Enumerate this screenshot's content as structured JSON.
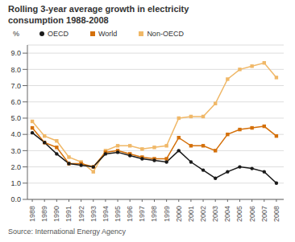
{
  "chart_data": {
    "type": "line",
    "title": "Rolling 3-year average growth in electricity\nconsumption 1988-2008",
    "ylabel": "%",
    "annotations": [
      "Source: International Energy Agency"
    ],
    "x": [
      1988,
      1989,
      1990,
      1991,
      1992,
      1993,
      1994,
      1995,
      1996,
      1997,
      1998,
      1999,
      2000,
      2001,
      2002,
      2003,
      2004,
      2005,
      2006,
      2007,
      2008
    ],
    "series": [
      {
        "name": "OECD",
        "color": "#1a1a1a",
        "marker": "circle",
        "values": [
          4.1,
          3.5,
          2.8,
          2.2,
          2.1,
          2.0,
          2.8,
          2.9,
          2.7,
          2.5,
          2.4,
          2.3,
          3.0,
          2.3,
          1.8,
          1.3,
          1.7,
          2.0,
          1.9,
          1.7,
          1.0
        ]
      },
      {
        "name": "World",
        "color": "#d4700a",
        "marker": "square",
        "values": [
          4.4,
          3.5,
          3.2,
          2.2,
          2.2,
          2.0,
          2.9,
          3.0,
          2.8,
          2.6,
          2.5,
          2.5,
          3.8,
          3.3,
          3.3,
          3.0,
          4.0,
          4.3,
          4.4,
          4.5,
          3.9
        ]
      },
      {
        "name": "Non-OECD",
        "color": "#f0b868",
        "marker": "square",
        "values": [
          4.8,
          3.9,
          3.6,
          2.6,
          2.3,
          1.7,
          3.0,
          3.3,
          3.3,
          3.1,
          3.2,
          3.3,
          5.0,
          5.1,
          5.1,
          5.9,
          7.4,
          8.0,
          8.2,
          8.4,
          7.5
        ]
      }
    ],
    "xlim": [
      1987.6,
      2008.6
    ],
    "xticks": [
      1988,
      1989,
      1990,
      1991,
      1992,
      1993,
      1994,
      1995,
      1996,
      1997,
      1998,
      1999,
      2000,
      2001,
      2002,
      2003,
      2004,
      2005,
      2006,
      2007,
      2008
    ],
    "ylim": [
      0.0,
      9.5
    ],
    "yticks": [
      {
        "value": 0,
        "label": "0.0"
      },
      {
        "value": 1,
        "label": "1.0"
      },
      {
        "value": 2,
        "label": "2.0"
      },
      {
        "value": 3,
        "label": "3.0"
      },
      {
        "value": 4,
        "label": "4.0"
      },
      {
        "value": 5,
        "label": "5.0"
      },
      {
        "value": 6,
        "label": "6.0"
      },
      {
        "value": 7,
        "label": "7.0"
      },
      {
        "value": 8,
        "label": "8.0"
      },
      {
        "value": 9,
        "label": "9.0"
      }
    ],
    "grid": true,
    "legend": "top"
  }
}
